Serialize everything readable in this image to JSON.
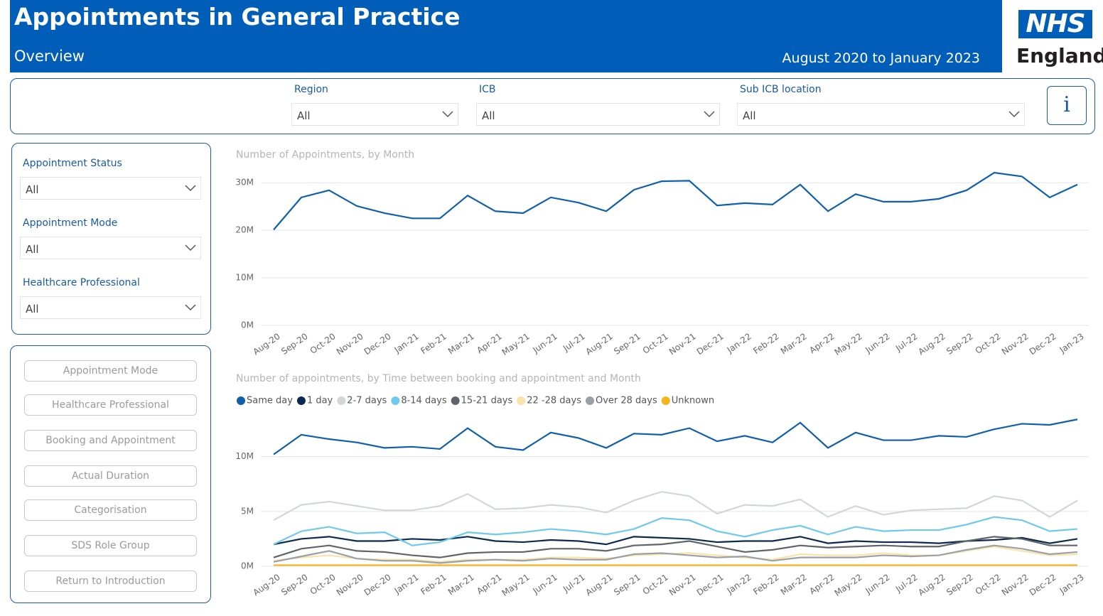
{
  "header": {
    "title": "Appointments in General Practice",
    "subtitle": "Overview",
    "date_range": "August 2020 to January 2023"
  },
  "logo": {
    "mark": "NHS",
    "name": "England"
  },
  "filters": [
    {
      "label": "Region",
      "value": "All"
    },
    {
      "label": "ICB",
      "value": "All"
    },
    {
      "label": "Sub ICB location",
      "value": "All"
    }
  ],
  "info_button": "i",
  "side_filters": [
    {
      "label": "Appointment Status",
      "value": "All"
    },
    {
      "label": "Appointment Mode",
      "value": "All"
    },
    {
      "label": "Healthcare Professional",
      "value": "All"
    }
  ],
  "nav_buttons": [
    "Appointment Mode",
    "Healthcare Professional",
    "Booking and Appointment",
    "Actual Duration",
    "Categorisation",
    "SDS Role Group",
    "Return to Introduction"
  ],
  "chart_data": [
    {
      "type": "line",
      "title": "Number of Appointments, by Month",
      "categories": [
        "Aug-20",
        "Sep-20",
        "Oct-20",
        "Nov-20",
        "Dec-20",
        "Jan-21",
        "Feb-21",
        "Mar-21",
        "Apr-21",
        "May-21",
        "Jun-21",
        "Jul-21",
        "Aug-21",
        "Sep-21",
        "Oct-21",
        "Nov-21",
        "Dec-21",
        "Jan-22",
        "Feb-22",
        "Mar-22",
        "Apr-22",
        "May-22",
        "Jun-22",
        "Jul-22",
        "Aug-22",
        "Sep-22",
        "Oct-22",
        "Nov-22",
        "Dec-22",
        "Jan-23"
      ],
      "series": [
        {
          "name": "Appointments",
          "color": "#0f5fad",
          "values": [
            20100000,
            26900000,
            28400000,
            25100000,
            23600000,
            22500000,
            22500000,
            27300000,
            24000000,
            23600000,
            26900000,
            25800000,
            24000000,
            28500000,
            30300000,
            30400000,
            25200000,
            25700000,
            25400000,
            29600000,
            24000000,
            27600000,
            26000000,
            26000000,
            26600000,
            28400000,
            32100000,
            31300000,
            26900000,
            29600000
          ]
        }
      ],
      "ylim": [
        0,
        33000000
      ],
      "yticks": [
        {
          "value": 0,
          "label": "0M"
        },
        {
          "value": 10000000,
          "label": "10M"
        },
        {
          "value": 20000000,
          "label": "20M"
        },
        {
          "value": 30000000,
          "label": "30M"
        }
      ],
      "grid": true
    },
    {
      "type": "line",
      "title": "Number of appointments, by Time between booking and appointment and Month",
      "categories": [
        "Aug-20",
        "Sep-20",
        "Oct-20",
        "Nov-20",
        "Dec-20",
        "Jan-21",
        "Feb-21",
        "Mar-21",
        "Apr-21",
        "May-21",
        "Jun-21",
        "Jul-21",
        "Aug-21",
        "Sep-21",
        "Oct-21",
        "Nov-21",
        "Dec-21",
        "Jan-22",
        "Feb-22",
        "Mar-22",
        "Apr-22",
        "May-22",
        "Jun-22",
        "Jul-22",
        "Aug-22",
        "Sep-22",
        "Oct-22",
        "Nov-22",
        "Dec-22",
        "Jan-23"
      ],
      "series": [
        {
          "name": "Same day",
          "color": "#0f5fad",
          "values": [
            10200000,
            12000000,
            11600000,
            11300000,
            10800000,
            10900000,
            10700000,
            12600000,
            10900000,
            10600000,
            12200000,
            11700000,
            10800000,
            12100000,
            12000000,
            12600000,
            11400000,
            11900000,
            11300000,
            13100000,
            10800000,
            12200000,
            11500000,
            11500000,
            11900000,
            11800000,
            12500000,
            13000000,
            12900000,
            13400000
          ]
        },
        {
          "name": "1 day",
          "color": "#0b2a52",
          "values": [
            2000000,
            2500000,
            2700000,
            2300000,
            2300000,
            2500000,
            2400000,
            2700000,
            2300000,
            2200000,
            2400000,
            2300000,
            2000000,
            2700000,
            2600000,
            2500000,
            2200000,
            2300000,
            2300000,
            2700000,
            2100000,
            2300000,
            2200000,
            2200000,
            2100000,
            2300000,
            2400000,
            2600000,
            2100000,
            2500000
          ]
        },
        {
          "name": "2-7 days",
          "color": "#d3d6d8",
          "values": [
            4200000,
            5600000,
            5900000,
            5500000,
            5100000,
            5100000,
            5500000,
            6600000,
            5200000,
            5300000,
            5600000,
            5400000,
            4900000,
            6000000,
            6800000,
            6400000,
            4800000,
            5600000,
            5500000,
            6100000,
            4500000,
            5500000,
            4700000,
            5100000,
            5200000,
            5300000,
            6400000,
            6000000,
            4500000,
            6000000
          ]
        },
        {
          "name": "8-14 days",
          "color": "#6ec9ee",
          "values": [
            2000000,
            3200000,
            3600000,
            3000000,
            3100000,
            1900000,
            2200000,
            3100000,
            2900000,
            3100000,
            3400000,
            3200000,
            2900000,
            3400000,
            4400000,
            4200000,
            3200000,
            2700000,
            3300000,
            3700000,
            2900000,
            3600000,
            3200000,
            3300000,
            3300000,
            3800000,
            4500000,
            4200000,
            3200000,
            3400000
          ]
        },
        {
          "name": "15-21 days",
          "color": "#5f6468",
          "values": [
            800000,
            1600000,
            1900000,
            1400000,
            1300000,
            1000000,
            800000,
            1200000,
            1300000,
            1300000,
            1600000,
            1600000,
            1400000,
            1900000,
            2000000,
            2300000,
            1800000,
            1300000,
            1500000,
            1900000,
            1700000,
            1800000,
            1900000,
            1800000,
            1800000,
            2300000,
            2700000,
            2500000,
            1900000,
            1900000
          ]
        },
        {
          "name": "22 -28 days",
          "color": "#fbe2a8",
          "values": [
            500000,
            800000,
            1000000,
            700000,
            600000,
            600000,
            400000,
            600000,
            600000,
            600000,
            800000,
            800000,
            700000,
            1000000,
            1100000,
            1200000,
            1000000,
            800000,
            600000,
            1100000,
            1000000,
            1000000,
            1200000,
            1000000,
            1000000,
            1400000,
            1800000,
            1400000,
            1000000,
            1100000
          ]
        },
        {
          "name": "Over 28 days",
          "color": "#9aa0a6",
          "values": [
            400000,
            900000,
            1400000,
            700000,
            500000,
            500000,
            300000,
            500000,
            600000,
            500000,
            700000,
            600000,
            600000,
            1100000,
            1200000,
            1000000,
            800000,
            900000,
            500000,
            800000,
            800000,
            800000,
            1000000,
            900000,
            1000000,
            1500000,
            1900000,
            1600000,
            1100000,
            1300000
          ]
        },
        {
          "name": "Unknown",
          "color": "#f6b41a",
          "values": [
            100000,
            100000,
            100000,
            100000,
            100000,
            100000,
            100000,
            100000,
            100000,
            100000,
            100000,
            100000,
            100000,
            100000,
            100000,
            100000,
            100000,
            100000,
            100000,
            100000,
            100000,
            100000,
            100000,
            100000,
            100000,
            100000,
            100000,
            100000,
            100000,
            100000
          ]
        }
      ],
      "ylim": [
        0,
        14000000
      ],
      "yticks": [
        {
          "value": 0,
          "label": "0M"
        },
        {
          "value": 5000000,
          "label": "5M"
        },
        {
          "value": 10000000,
          "label": "10M"
        }
      ],
      "grid": true
    }
  ]
}
